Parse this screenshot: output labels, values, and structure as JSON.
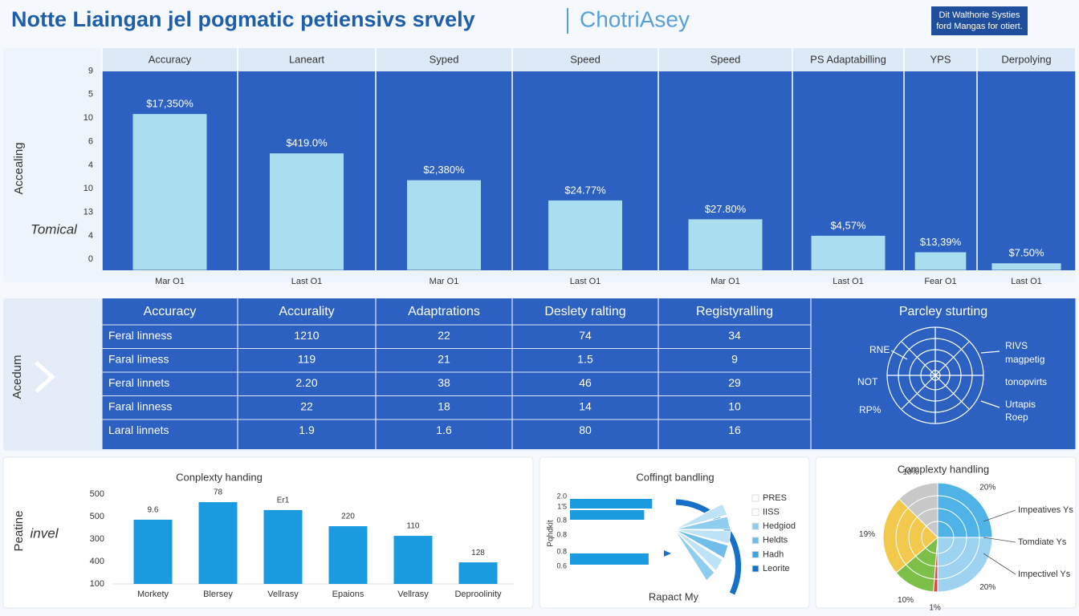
{
  "header": {
    "title": "Notte Liaingan jel pogmatic petiensivs srvely",
    "subtitle": "ChotriAsey",
    "badge": [
      "Dit Walthorie Systies",
      "ford Mangas for otiert."
    ]
  },
  "chart_data": [
    {
      "type": "bar",
      "column_headers": [
        "Accuracy",
        "Laneart",
        "Syped",
        "Speed",
        "Speed",
        "PS  Adaptabilling",
        "YPS",
        "Derpolying"
      ],
      "categories": [
        "Mar O1",
        "Last O1",
        "Mar O1",
        "Last O1",
        "Mar O1",
        "Last O1",
        "Fear O1",
        "Last O1"
      ],
      "values": [
        6.17,
        4.5,
        3.36,
        2.5,
        1.7,
        1.0,
        0.3,
        -0.17
      ],
      "bar_labels": [
        "$17,350%",
        "$419.0%",
        "$2,380%",
        "$24.77%",
        "$27.80%",
        "$4,57%",
        "$13,39%",
        "$7.50%"
      ],
      "ylabel": "Accealing",
      "ylabel2": "Tomical",
      "color": "#a9def0",
      "ylim": [
        -0.45,
        8.05
      ],
      "yticks": [
        0,
        {
          "value": 1,
          "label": "4"
        },
        {
          "value": 2,
          "label": "13"
        },
        {
          "value": 3,
          "label": "10"
        },
        4,
        {
          "value": 5,
          "label": "6"
        },
        {
          "value": 6,
          "label": "10"
        },
        {
          "value": 7,
          "label": "5"
        },
        {
          "value": 8,
          "label": "9"
        }
      ]
    },
    {
      "type": "bar",
      "title": "Conplexty handing",
      "ylabel": "Peatine",
      "ylabel2": "invel",
      "color": "#1a9be0",
      "categories": [
        "Morkety",
        "Blersey",
        "Vellrasy",
        "Epaions",
        "Vellrasy",
        "Deproolinity"
      ],
      "values": [
        2.86,
        3.64,
        3.29,
        2.57,
        2.14,
        0.96
      ],
      "bar_labels": [
        "9.6",
        "78",
        "Er1",
        "220",
        "110",
        "128"
      ],
      "ylim": [
        0,
        4.2
      ],
      "yticks": [
        {
          "value": 0,
          "label": "100"
        },
        {
          "value": 1,
          "label": "400"
        },
        {
          "value": 2,
          "label": "300"
        },
        {
          "value": 3,
          "label": "500"
        },
        {
          "value": 4,
          "label": "500"
        }
      ]
    },
    {
      "type": "hbar",
      "title": "Coffingt bandling",
      "ylabel": "Pqhdkit",
      "footer": "Rapact My",
      "color": "#1a9be0",
      "tick_labels": [
        "2.0",
        "1'5",
        "0.8",
        "0.8",
        "0.8",
        "0.6"
      ],
      "values": [
        0.93,
        0.84,
        0.89
      ],
      "xlim": [
        0,
        1
      ],
      "legend": [
        {
          "name": "PRES",
          "color": "#ffffff"
        },
        {
          "name": "IISS",
          "color": "#ffffff"
        },
        {
          "name": "Hedgiod",
          "color": "#8fcdee"
        },
        {
          "name": "Heldts",
          "color": "#6fbde8"
        },
        {
          "name": "Hadh",
          "color": "#3fa3e0"
        },
        {
          "name": "Leorite",
          "color": "#1670c8"
        }
      ]
    },
    {
      "type": "pie",
      "title": "Complexty handling",
      "values": [
        20,
        20,
        1,
        10,
        19,
        10
      ],
      "value_labels": [
        "20%",
        "20%",
        "1%",
        "10%",
        "19%",
        "10%"
      ],
      "colors": [
        "#4fb3e8",
        "#9dd3f0",
        "#e04848",
        "#7cc04a",
        "#f2c94c",
        "#c8c8c8"
      ],
      "legend": [
        "Impeatives Ys",
        "Tomdiate Ys",
        "Impectivel Ys"
      ]
    }
  ],
  "table": {
    "side_label": "Acedum",
    "columns": [
      "Accuracy",
      "Accurality",
      "Adaptrations",
      "Deslety ralting",
      "Registyralling",
      "Parcley sturting"
    ],
    "rows": [
      [
        "Feral linness",
        "1210",
        "22",
        "74",
        "34"
      ],
      [
        "Faral limess",
        "119",
        "21",
        "1.5",
        "9"
      ],
      [
        "Feral linnets",
        "2.20",
        "38",
        "46",
        "29"
      ],
      [
        "Faral linness",
        "22",
        "18",
        "14",
        "10"
      ],
      [
        "Laral linnets",
        "1.9",
        "1.6",
        "80",
        "16"
      ]
    ],
    "radar_labels": [
      "RNE",
      "NOT",
      "RP%",
      "RIVS",
      "magpetig",
      "tonopvirts",
      "Urtapis",
      "Roep"
    ]
  }
}
